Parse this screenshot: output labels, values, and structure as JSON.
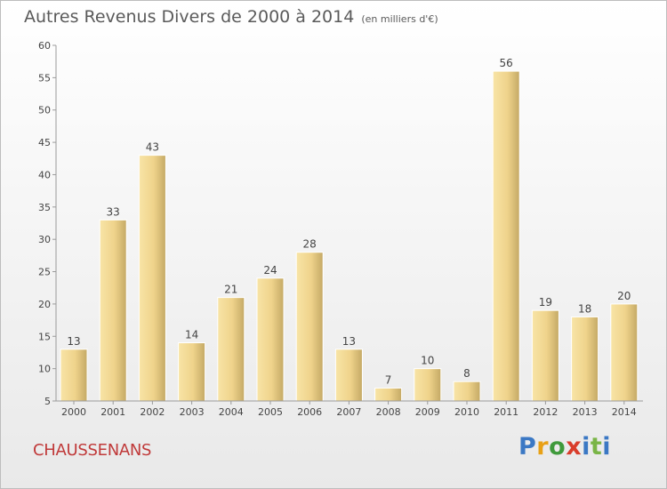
{
  "header": {
    "title": "Autres Revenus Divers de 2000 à 2014",
    "unit": "(en milliers d'€)"
  },
  "footer": {
    "town": "CHAUSSENANS",
    "logo_text": "Proxiti"
  },
  "colors": {
    "bar_light": "#f6dc96",
    "bar_dark": "#c4a965",
    "town": "#c03a3a"
  },
  "chart_data": {
    "type": "bar",
    "title": "Autres Revenus Divers de 2000 à 2014",
    "subtitle": "(en milliers d'€)",
    "xlabel": "",
    "ylabel": "",
    "ylim": [
      5,
      60
    ],
    "yticks": [
      5,
      10,
      15,
      20,
      25,
      30,
      35,
      40,
      45,
      50,
      55,
      60
    ],
    "grid": false,
    "categories": [
      "2000",
      "2001",
      "2002",
      "2003",
      "2004",
      "2005",
      "2006",
      "2007",
      "2008",
      "2009",
      "2010",
      "2011",
      "2012",
      "2013",
      "2014"
    ],
    "values": [
      13,
      33,
      43,
      14,
      21,
      24,
      28,
      13,
      7,
      10,
      8,
      56,
      19,
      18,
      20
    ],
    "data_labels": [
      "13",
      "33",
      "43",
      "14",
      "21",
      "24",
      "28",
      "13",
      "7",
      "10",
      "8",
      "56",
      "19",
      "18",
      "20"
    ]
  }
}
